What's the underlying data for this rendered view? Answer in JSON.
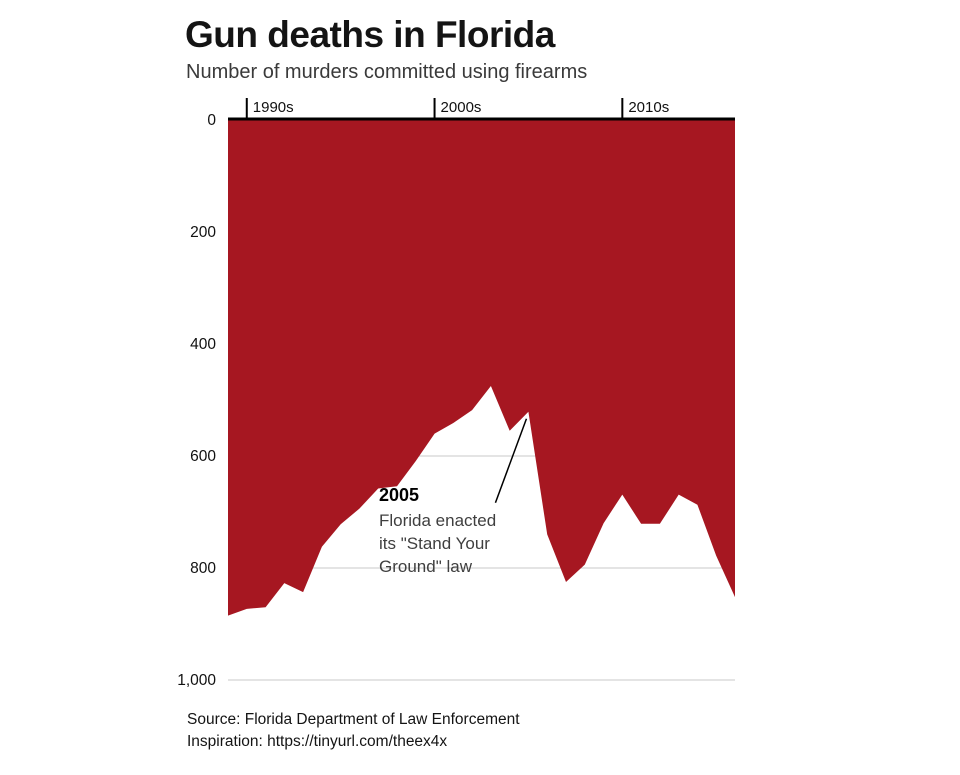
{
  "header": {
    "title": "Gun deaths in Florida",
    "subtitle": "Number of murders committed using firearms"
  },
  "annotation": {
    "year": "2005",
    "lines": [
      "Florida enacted",
      "its \"Stand Your",
      "Ground\" law"
    ]
  },
  "footer": {
    "source": "Source: Florida Department of Law Enforcement",
    "inspiration": "Inspiration: https://tinyurl.com/theex4x"
  },
  "colors": {
    "area_fill": "#a61721",
    "axis": "#000000",
    "grid": "#c9c9c9",
    "text_dark": "#141414",
    "text_gray": "#3f3f3f"
  },
  "chart_data": {
    "type": "area",
    "title": "Gun deaths in Florida",
    "subtitle": "Number of murders committed using firearms",
    "y_axis_inverted": true,
    "xlim": [
      1989,
      2016
    ],
    "ylim": [
      0,
      1000
    ],
    "x": [
      1989,
      1990,
      1991,
      1992,
      1993,
      1994,
      1995,
      1996,
      1997,
      1998,
      1999,
      2000,
      2001,
      2002,
      2003,
      2004,
      2005,
      2006,
      2007,
      2008,
      2009,
      2010,
      2011,
      2012,
      2013,
      2014,
      2015,
      2016
    ],
    "values": [
      885,
      873,
      870,
      827,
      843,
      762,
      722,
      694,
      658,
      654,
      609,
      560,
      541,
      518,
      475,
      555,
      521,
      740,
      825,
      794,
      720,
      669,
      721,
      721,
      669,
      687,
      778,
      852
    ],
    "y_ticks": [
      {
        "value": 0,
        "label": "0"
      },
      {
        "value": 200,
        "label": "200"
      },
      {
        "value": 400,
        "label": "400"
      },
      {
        "value": 600,
        "label": "600"
      },
      {
        "value": 800,
        "label": "800"
      },
      {
        "value": 1000,
        "label": "1,000"
      }
    ],
    "x_ticks": [
      {
        "value": 1990,
        "label": "1990s"
      },
      {
        "value": 2000,
        "label": "2000s"
      },
      {
        "value": 2010,
        "label": "2010s"
      }
    ],
    "annotation": {
      "x": 2005,
      "y": 521,
      "label": "2005: Florida enacted its \"Stand Your Ground\" law"
    }
  }
}
